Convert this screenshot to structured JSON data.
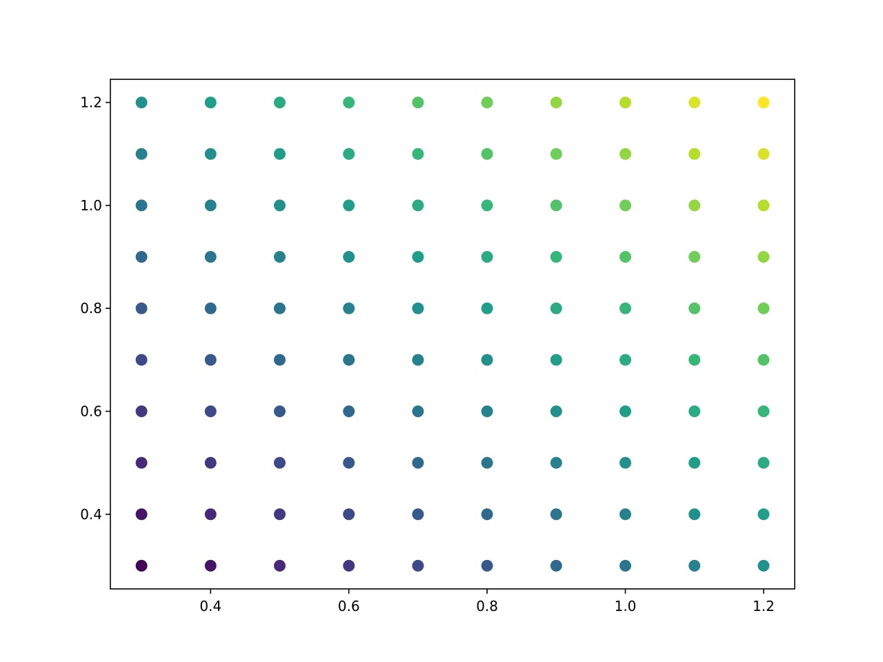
{
  "chart_data": {
    "type": "scatter",
    "title": "",
    "xlabel": "",
    "ylabel": "",
    "x_grid": [
      0.3,
      0.4,
      0.5,
      0.6,
      0.7,
      0.8,
      0.9,
      1.0,
      1.1,
      1.2
    ],
    "y_grid": [
      0.3,
      0.4,
      0.5,
      0.6,
      0.7,
      0.8,
      0.9,
      1.0,
      1.1,
      1.2
    ],
    "color_value": "x + y",
    "colormap": "viridis",
    "colormap_stops": [
      "#440154",
      "#482878",
      "#3e4989",
      "#31688e",
      "#26828e",
      "#1f9e89",
      "#35b779",
      "#6ece58",
      "#b5de2b",
      "#fde725"
    ],
    "xlim": [
      0.255,
      1.245
    ],
    "ylim": [
      0.255,
      1.245
    ],
    "xticks": [
      0.4,
      0.6,
      0.8,
      1.0,
      1.2
    ],
    "xtick_labels": [
      "0.4",
      "0.6",
      "0.8",
      "1.0",
      "1.2"
    ],
    "yticks": [
      0.4,
      0.6,
      0.8,
      1.0,
      1.2
    ],
    "ytick_labels": [
      "0.4",
      "0.6",
      "0.8",
      "1.0",
      "1.2"
    ],
    "grid": false,
    "legend": "none"
  }
}
